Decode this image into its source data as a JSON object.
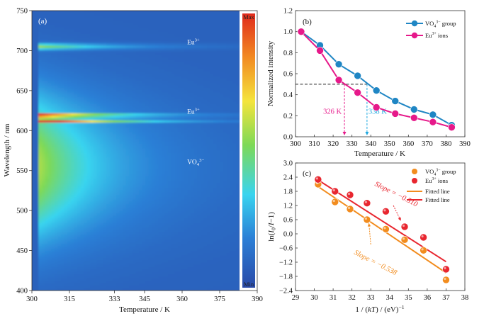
{
  "chart_data": [
    {
      "panel": "(a)",
      "type": "heatmap",
      "xlabel": "Temperature / K",
      "ylabel": "Wavelength / nm",
      "xlim": [
        300,
        390
      ],
      "ylim": [
        400,
        750
      ],
      "xticks": [
        300,
        315,
        333,
        345,
        360,
        375,
        390
      ],
      "yticks": [
        400,
        450,
        500,
        550,
        600,
        650,
        700,
        750
      ],
      "colorbar": {
        "max_label": "Max",
        "min_label": "Min",
        "colors": [
          "#2a4aa8",
          "#2b7fd6",
          "#39d4ef",
          "#7ed957",
          "#f4e43c",
          "#f28a22",
          "#e02a1c"
        ]
      },
      "annotations": [
        {
          "text": "Eu",
          "sup": "3+",
          "x": 362,
          "y": 708
        },
        {
          "text": "Eu",
          "sup": "3+",
          "x": 362,
          "y": 621
        },
        {
          "text": "VO",
          "sub": "4",
          "sup": "3−",
          "x": 362,
          "y": 558
        }
      ],
      "emission_bands": [
        {
          "center_nm": 705,
          "width_nm": 6,
          "peak": 0.45
        },
        {
          "center_nm": 619,
          "width_nm": 3,
          "peak": 1.0
        },
        {
          "center_nm": 612,
          "width_nm": 3,
          "peak": 0.95
        },
        {
          "center_nm": 555,
          "width_nm": 95,
          "peak": 0.5
        }
      ]
    },
    {
      "panel": "(b)",
      "type": "line",
      "xlabel": "Temperature / K",
      "ylabel": "Normalized intensity",
      "xlim": [
        300,
        390
      ],
      "ylim": [
        0.0,
        1.2
      ],
      "xticks": [
        300,
        310,
        320,
        330,
        340,
        350,
        360,
        370,
        380,
        390
      ],
      "yticks": [
        0.0,
        0.2,
        0.4,
        0.6,
        0.8,
        1.0,
        1.2
      ],
      "x": [
        303,
        313,
        323,
        333,
        343,
        353,
        363,
        373,
        383
      ],
      "series": [
        {
          "name": "VO",
          "name_sub": "4",
          "name_sup": "3−",
          "name_tail": " group",
          "color": "#1f86c4",
          "values": [
            1.0,
            0.87,
            0.69,
            0.58,
            0.44,
            0.34,
            0.26,
            0.21,
            0.11
          ]
        },
        {
          "name": "Eu",
          "name_sup": "3+",
          "name_tail": " ions",
          "color": "#e6198a",
          "values": [
            1.0,
            0.82,
            0.54,
            0.42,
            0.28,
            0.22,
            0.18,
            0.14,
            0.09
          ]
        }
      ],
      "reference_line": {
        "y": 0.5
      },
      "markers": [
        {
          "label": "326 K",
          "x": 326,
          "color": "#e6198a"
        },
        {
          "label": "338 K",
          "x": 338,
          "color": "#1fa8e0"
        }
      ]
    },
    {
      "panel": "(c)",
      "type": "scatter",
      "xlabel": "1 / (kT) / (eV)−1",
      "ylabel": "ln(I0/I−1)",
      "xlim": [
        29,
        38
      ],
      "ylim": [
        -2.4,
        3.0
      ],
      "xticks": [
        29,
        30,
        31,
        32,
        33,
        34,
        35,
        36,
        37,
        38
      ],
      "yticks": [
        -2.4,
        -1.8,
        -1.2,
        -0.6,
        0.0,
        0.6,
        1.2,
        1.8,
        2.4,
        3.0
      ],
      "series": [
        {
          "name": "VO",
          "name_sub": "4",
          "name_sup": "3−",
          "name_tail": " group",
          "color": "#f28c1e",
          "x": [
            30.2,
            31.1,
            31.9,
            32.8,
            33.8,
            34.8,
            35.8,
            37.0
          ],
          "y": [
            2.1,
            1.35,
            1.05,
            0.6,
            0.2,
            -0.25,
            -0.7,
            -1.95
          ]
        },
        {
          "name": "Eu",
          "name_sup": "3+",
          "name_tail": " ions",
          "color": "#e8262f",
          "x": [
            30.2,
            31.1,
            31.9,
            32.8,
            33.8,
            34.8,
            35.8,
            37.0
          ],
          "y": [
            2.3,
            1.8,
            1.65,
            1.3,
            0.95,
            0.3,
            -0.15,
            -1.5
          ]
        }
      ],
      "fits": [
        {
          "name": "Fitted line",
          "color": "#f28c1e",
          "slope": -0.538,
          "x": [
            30.2,
            37.0
          ],
          "y": [
            2.0,
            -1.65
          ]
        },
        {
          "name": "Fitted line",
          "color": "#e8262f",
          "slope": -0.51,
          "x": [
            30.2,
            37.0
          ],
          "y": [
            2.28,
            -1.18
          ]
        }
      ],
      "annotations": [
        {
          "text": "Slope = −0.510",
          "color": "#e8262f"
        },
        {
          "text": "Slope = −0.538",
          "color": "#f28c1e"
        }
      ]
    }
  ]
}
